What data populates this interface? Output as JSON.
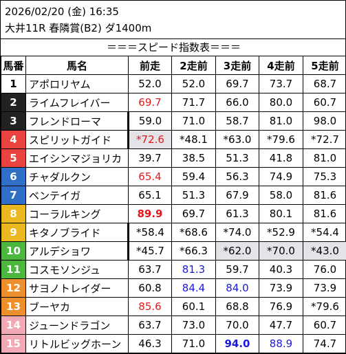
{
  "header": {
    "line1": "2026/02/20 (金) 16:35",
    "line2": "大井11R 春隣賞(B2) ダ1400m",
    "section_title": "＝＝＝スピード指数表＝＝＝"
  },
  "columns": [
    "馬番",
    "馬名",
    "前走",
    "2走前",
    "3走前",
    "4走前",
    "5走前"
  ],
  "colors": {
    "gate_1": "#ffffff",
    "gate_2": "#222222",
    "gate_3": "#e8433f",
    "gate_4": "#e8433f",
    "gate_5": "#e8433f",
    "red_text": "#e0181b",
    "blue_text": "#1a1ad8",
    "highlight": "#e4e4e8"
  },
  "rows": [
    {
      "no": "1",
      "name": "アポロリヤム",
      "v": [
        "52.0",
        "52.0",
        "69.7",
        "73.7",
        "68.7"
      ]
    },
    {
      "no": "2",
      "name": "ライムフレイバー",
      "v": [
        "69.7",
        "71.7",
        "66.0",
        "80.0",
        "60.7"
      ]
    },
    {
      "no": "3",
      "name": "フレンドローマ",
      "v": [
        "59.0",
        "71.0",
        "58.7",
        "81.0",
        "98.0"
      ]
    },
    {
      "no": "4",
      "name": "スピリットガイド",
      "v": [
        "*72.6",
        "*48.1",
        "*63.0",
        "*79.6",
        "*72.7"
      ]
    },
    {
      "no": "5",
      "name": "エイシンマジョリカ",
      "v": [
        "39.7",
        "38.5",
        "51.3",
        "41.8",
        "81.0"
      ]
    },
    {
      "no": "6",
      "name": "チャダルクン",
      "v": [
        "65.4",
        "59.4",
        "56.3",
        "74.9",
        "75.3"
      ]
    },
    {
      "no": "7",
      "name": "ベンテイガ",
      "v": [
        "65.1",
        "51.3",
        "67.9",
        "58.0",
        "81.6"
      ]
    },
    {
      "no": "8",
      "name": "コーラルキング",
      "v": [
        "89.9",
        "69.7",
        "61.3",
        "80.1",
        "81.6"
      ]
    },
    {
      "no": "9",
      "name": "キタノブライド",
      "v": [
        "*58.4",
        "*68.6",
        "*74.0",
        "*52.9",
        "*54.4"
      ]
    },
    {
      "no": "10",
      "name": "アルデショワ",
      "v": [
        "*45.7",
        "*66.3",
        "*62.0",
        "*70.0",
        "*43.0"
      ]
    },
    {
      "no": "11",
      "name": "コスモソンジュ",
      "v": [
        "63.7",
        "81.3",
        "59.7",
        "40.3",
        "76.0"
      ]
    },
    {
      "no": "12",
      "name": "サヨノトレイダー",
      "v": [
        "60.8",
        "84.4",
        "84.0",
        "73.9",
        "73.9"
      ]
    },
    {
      "no": "13",
      "name": "ブーヤカ",
      "v": [
        "85.6",
        "60.1",
        "68.8",
        "76.9",
        "*79.6"
      ]
    },
    {
      "no": "14",
      "name": "ジューンドラゴン",
      "v": [
        "63.7",
        "73.0",
        "70.0",
        "47.7",
        "60.7"
      ]
    },
    {
      "no": "15",
      "name": "リトルビッグホーン",
      "v": [
        "46.3",
        "71.0",
        "94.0",
        "88.9",
        "74.7"
      ]
    }
  ]
}
